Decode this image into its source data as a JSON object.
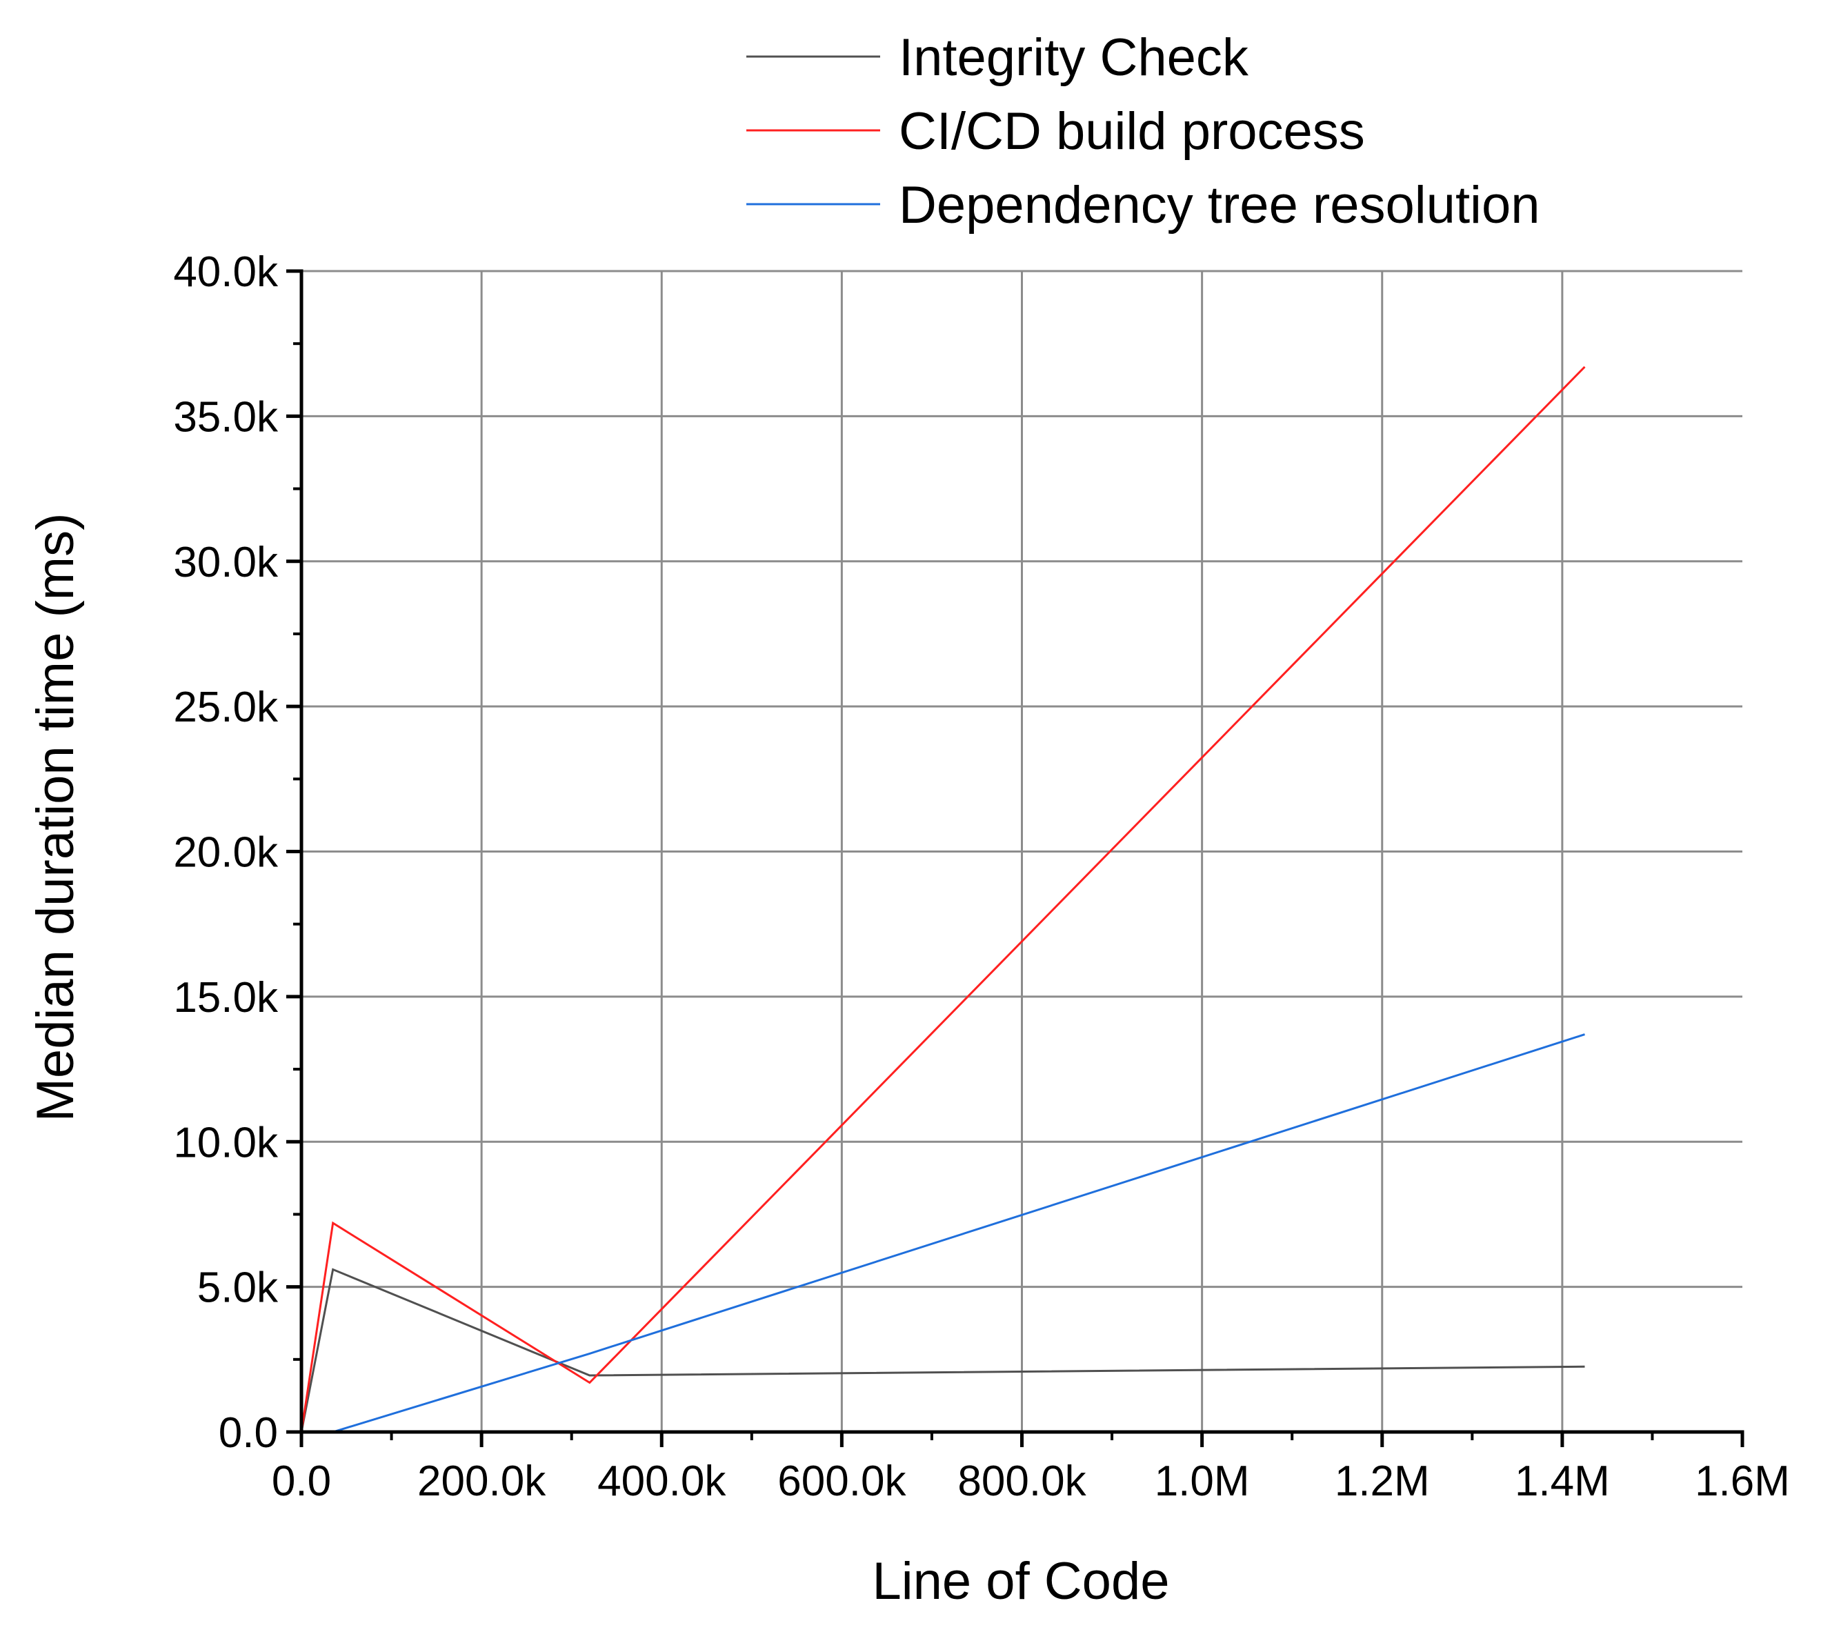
{
  "chart_data": {
    "type": "line",
    "title": "",
    "xlabel": "Line of Code",
    "ylabel": "Median duration time (ms)",
    "xlim": [
      0,
      1600000
    ],
    "ylim": [
      0,
      40000
    ],
    "grid": true,
    "legend_position": "top",
    "x_tick_labels": [
      {
        "value": 0,
        "label": "0.0"
      },
      {
        "value": 200000,
        "label": "200.0k"
      },
      {
        "value": 400000,
        "label": "400.0k"
      },
      {
        "value": 600000,
        "label": "600.0k"
      },
      {
        "value": 800000,
        "label": "800.0k"
      },
      {
        "value": 1000000,
        "label": "1.0M"
      },
      {
        "value": 1200000,
        "label": "1.2M"
      },
      {
        "value": 1400000,
        "label": "1.4M"
      },
      {
        "value": 1600000,
        "label": "1.6M"
      }
    ],
    "y_tick_labels": [
      {
        "value": 0,
        "label": "0.0"
      },
      {
        "value": 5000,
        "label": "5.0k"
      },
      {
        "value": 10000,
        "label": "10.0k"
      },
      {
        "value": 15000,
        "label": "15.0k"
      },
      {
        "value": 20000,
        "label": "20.0k"
      },
      {
        "value": 25000,
        "label": "25.0k"
      },
      {
        "value": 30000,
        "label": "30.0k"
      },
      {
        "value": 35000,
        "label": "35.0k"
      },
      {
        "value": 40000,
        "label": "40.0k"
      }
    ],
    "x_minor_step": 100000,
    "y_minor_step": 2500,
    "series": [
      {
        "name": "Integrity Check",
        "color": "#505050",
        "x": [
          0,
          35000,
          320000,
          1425000
        ],
        "y": [
          0,
          5600,
          1950,
          2250
        ]
      },
      {
        "name": "CI/CD build process",
        "color": "#ff2020",
        "x": [
          0,
          35000,
          320000,
          1425000
        ],
        "y": [
          0,
          7200,
          1700,
          36700
        ]
      },
      {
        "name": "Dependency tree resolution",
        "color": "#1f6fdc",
        "x": [
          0,
          35000,
          320000,
          1425000
        ],
        "y": [
          0,
          0,
          2700,
          13700
        ]
      }
    ]
  }
}
